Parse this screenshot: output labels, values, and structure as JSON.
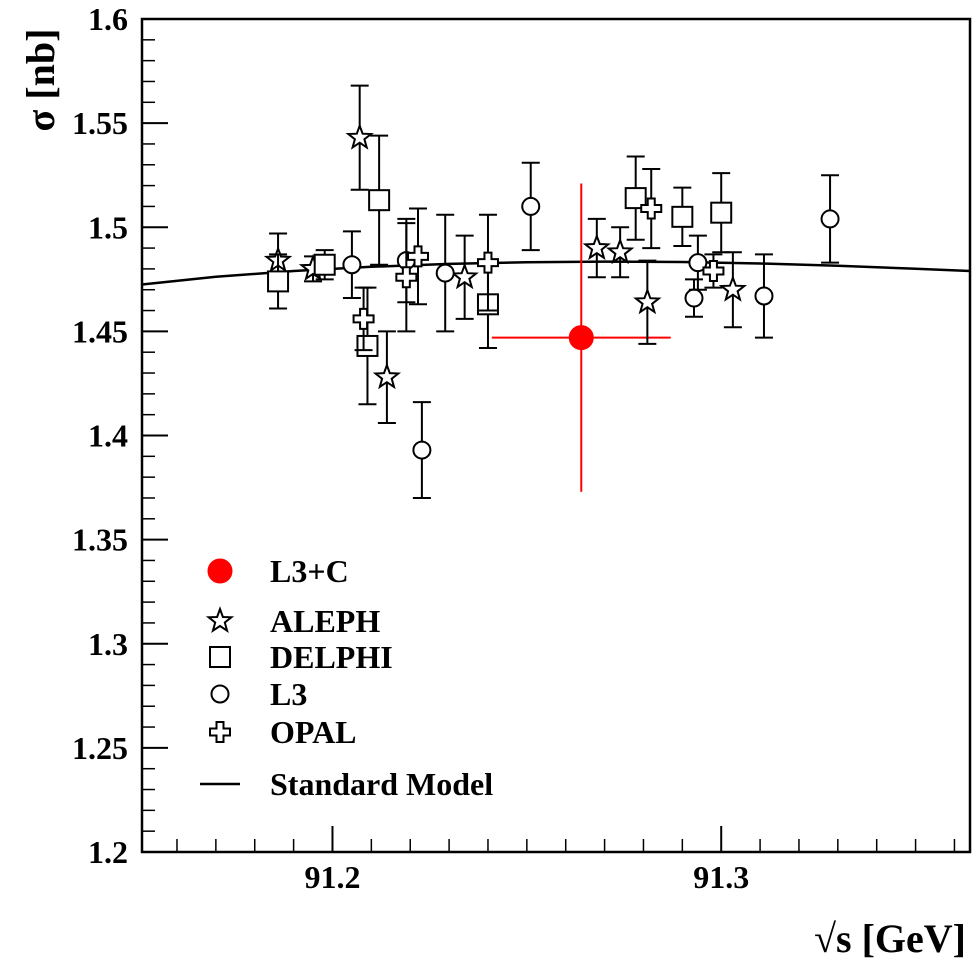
{
  "chart_data": {
    "type": "scatter",
    "xlabel": "√s [GeV]",
    "ylabel": "σ [nb]",
    "xlim": [
      91.151,
      91.364
    ],
    "ylim": [
      1.2,
      1.6
    ],
    "x_ticks": [
      91.2,
      91.3
    ],
    "x_tick_labels": [
      "91.2",
      "91.3"
    ],
    "y_ticks": [
      1.2,
      1.25,
      1.3,
      1.35,
      1.4,
      1.45,
      1.5,
      1.55,
      1.6
    ],
    "y_tick_labels": [
      "1.2",
      "1.25",
      "1.3",
      "1.35",
      "1.4",
      "1.45",
      "1.5",
      "1.55",
      "1.6"
    ],
    "grid": false,
    "legend_position": "lower-left",
    "series": [
      {
        "name": "L3+C",
        "marker": "filled-circle",
        "color": "#ff0000",
        "points": [
          {
            "x": 91.264,
            "y": 1.447,
            "yerr": 0.074,
            "xerr": 0.023
          }
        ]
      },
      {
        "name": "ALEPH",
        "marker": "star",
        "color": "#000000",
        "points": [
          {
            "x": 91.186,
            "y": 1.484,
            "yerr": 0.013
          },
          {
            "x": 91.195,
            "y": 1.48,
            "yerr": 0.006
          },
          {
            "x": 91.207,
            "y": 1.543,
            "yerr": 0.025
          },
          {
            "x": 91.214,
            "y": 1.428,
            "yerr": 0.022
          },
          {
            "x": 91.234,
            "y": 1.476,
            "yerr": 0.02
          },
          {
            "x": 91.268,
            "y": 1.49,
            "yerr": 0.014
          },
          {
            "x": 91.274,
            "y": 1.488,
            "yerr": 0.012
          },
          {
            "x": 91.281,
            "y": 1.464,
            "yerr": 0.02
          },
          {
            "x": 91.303,
            "y": 1.47,
            "yerr": 0.018
          }
        ]
      },
      {
        "name": "DELPHI",
        "marker": "square",
        "color": "#000000",
        "points": [
          {
            "x": 91.186,
            "y": 1.474,
            "yerr": 0.013
          },
          {
            "x": 91.198,
            "y": 1.482,
            "yerr": 0.007
          },
          {
            "x": 91.209,
            "y": 1.443,
            "yerr": 0.028
          },
          {
            "x": 91.212,
            "y": 1.513,
            "yerr": 0.031
          },
          {
            "x": 91.24,
            "y": 1.463,
            "yerr": 0.021
          },
          {
            "x": 91.278,
            "y": 1.514,
            "yerr": 0.02
          },
          {
            "x": 91.29,
            "y": 1.505,
            "yerr": 0.014
          },
          {
            "x": 91.3,
            "y": 1.507,
            "yerr": 0.019
          }
        ]
      },
      {
        "name": "L3",
        "marker": "open-circle",
        "color": "#000000",
        "points": [
          {
            "x": 91.205,
            "y": 1.482,
            "yerr": 0.016
          },
          {
            "x": 91.219,
            "y": 1.484,
            "yerr": 0.02
          },
          {
            "x": 91.223,
            "y": 1.393,
            "yerr": 0.023
          },
          {
            "x": 91.229,
            "y": 1.478,
            "yerr": 0.028
          },
          {
            "x": 91.251,
            "y": 1.51,
            "yerr": 0.021
          },
          {
            "x": 91.293,
            "y": 1.466,
            "yerr": 0.009
          },
          {
            "x": 91.294,
            "y": 1.483,
            "yerr": 0.013
          },
          {
            "x": 91.311,
            "y": 1.467,
            "yerr": 0.02
          },
          {
            "x": 91.328,
            "y": 1.504,
            "yerr": 0.021
          }
        ]
      },
      {
        "name": "OPAL",
        "marker": "cross",
        "color": "#000000",
        "points": [
          {
            "x": 91.208,
            "y": 1.456,
            "yerr": 0.015
          },
          {
            "x": 91.219,
            "y": 1.476,
            "yerr": 0.026
          },
          {
            "x": 91.222,
            "y": 1.486,
            "yerr": 0.023
          },
          {
            "x": 91.24,
            "y": 1.483,
            "yerr": 0.023
          },
          {
            "x": 91.282,
            "y": 1.509,
            "yerr": 0.019
          },
          {
            "x": 91.298,
            "y": 1.479,
            "yerr": 0.008
          }
        ]
      },
      {
        "name": "Standard Model",
        "marker": "line",
        "color": "#000000",
        "x": [
          91.151,
          91.17,
          91.19,
          91.21,
          91.23,
          91.25,
          91.27,
          91.29,
          91.31,
          91.33,
          91.35,
          91.364
        ],
        "y": [
          1.4725,
          1.4762,
          1.479,
          1.481,
          1.4824,
          1.4832,
          1.4835,
          1.4833,
          1.4826,
          1.4815,
          1.4801,
          1.479
        ]
      }
    ]
  }
}
